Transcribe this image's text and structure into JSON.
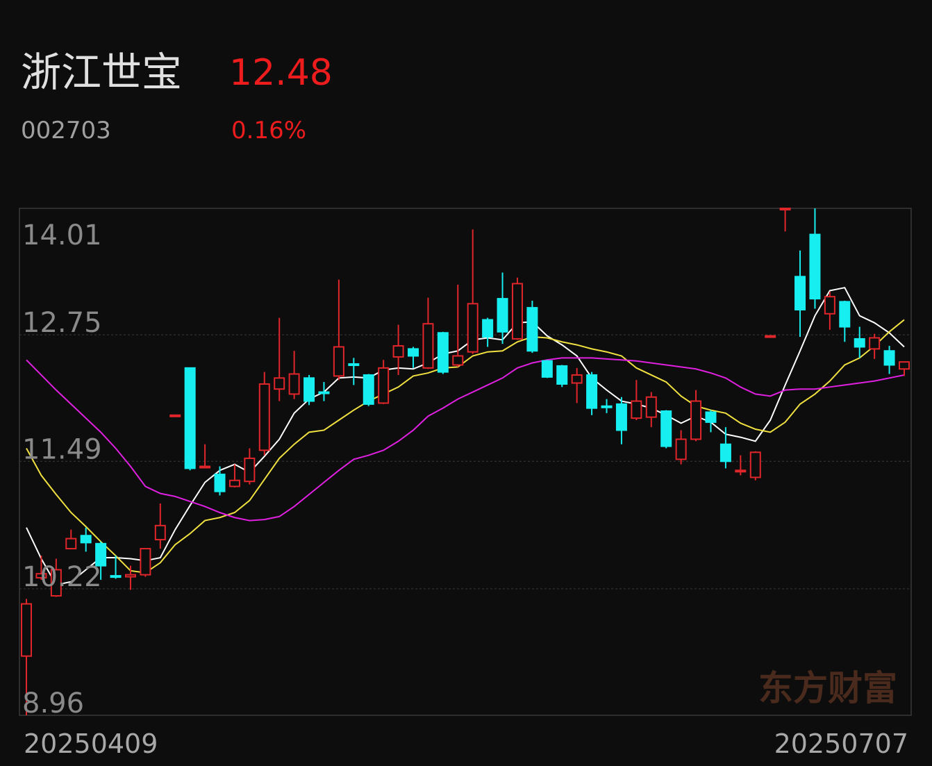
{
  "header": {
    "name": "浙江世宝",
    "price": "12.48",
    "code": "002703",
    "change": "0.16%"
  },
  "chart_data": {
    "type": "candlestick",
    "ylim": [
      8.96,
      14.01
    ],
    "yticks": [
      14.01,
      12.75,
      11.49,
      10.22,
      8.96
    ],
    "grid": true,
    "date_labels": [
      "20250409",
      "20250707"
    ],
    "up_color": "#e0262a",
    "down_color": "#17eef0",
    "open": [
      9.55,
      10.33,
      10.15,
      10.62,
      10.75,
      10.67,
      10.35,
      10.34,
      10.36,
      10.71,
      11.95,
      12.42,
      11.43,
      11.36,
      11.24,
      11.29,
      11.6,
      12.21,
      12.16,
      12.32,
      12.18,
      12.34,
      12.46,
      12.35,
      12.07,
      12.53,
      12.61,
      12.42,
      12.77,
      12.45,
      12.58,
      12.9,
      13.11,
      12.71,
      13.02,
      12.49,
      12.44,
      12.27,
      12.35,
      12.04,
      12.06,
      11.92,
      11.93,
      11.99,
      11.51,
      11.71,
      11.98,
      11.66,
      11.39,
      11.33,
      12.74,
      14.01,
      13.33,
      13.75,
      12.96,
      13.08,
      12.71,
      12.61,
      12.59,
      12.41
    ],
    "high": [
      10.12,
      10.55,
      10.52,
      10.81,
      10.83,
      10.69,
      10.55,
      10.45,
      10.62,
      11.07,
      11.95,
      12.42,
      11.66,
      11.44,
      11.46,
      11.62,
      12.38,
      12.92,
      12.59,
      12.35,
      12.28,
      13.3,
      12.52,
      12.36,
      12.5,
      12.85,
      12.63,
      13.12,
      12.78,
      13.25,
      13.8,
      12.92,
      13.37,
      13.32,
      13.09,
      12.5,
      12.45,
      12.42,
      12.38,
      12.11,
      12.13,
      12.3,
      12.18,
      12.0,
      11.8,
      12.2,
      12.0,
      11.83,
      11.55,
      11.59,
      12.74,
      14.01,
      13.59,
      14.01,
      13.18,
      13.09,
      12.83,
      12.76,
      12.64,
      12.48
    ],
    "low": [
      8.96,
      10.31,
      10.14,
      10.62,
      10.59,
      10.31,
      10.32,
      10.21,
      10.34,
      10.62,
      11.95,
      11.4,
      11.42,
      11.15,
      11.23,
      11.26,
      11.55,
      12.09,
      12.11,
      12.05,
      12.09,
      12.3,
      12.25,
      12.04,
      12.06,
      12.35,
      12.42,
      12.41,
      12.36,
      12.43,
      12.56,
      12.63,
      12.66,
      12.7,
      12.57,
      12.32,
      12.23,
      12.07,
      11.95,
      11.97,
      11.66,
      11.9,
      11.83,
      11.62,
      11.46,
      11.69,
      11.78,
      11.42,
      11.35,
      11.3,
      12.74,
      13.78,
      12.73,
      13.01,
      12.8,
      12.68,
      12.52,
      12.51,
      12.36,
      12.34
    ],
    "close": [
      10.07,
      10.37,
      10.41,
      10.72,
      10.68,
      10.45,
      10.34,
      10.36,
      10.62,
      10.85,
      11.95,
      11.42,
      11.44,
      11.19,
      11.3,
      11.52,
      12.26,
      12.32,
      12.36,
      12.09,
      12.17,
      12.63,
      12.45,
      12.06,
      12.42,
      12.64,
      12.54,
      12.86,
      12.38,
      12.54,
      13.06,
      12.73,
      12.78,
      13.26,
      12.59,
      12.33,
      12.26,
      12.35,
      12.02,
      12.03,
      11.8,
      12.09,
      12.13,
      11.64,
      11.71,
      12.09,
      11.88,
      11.49,
      11.4,
      11.58,
      12.74,
      14.01,
      13.0,
      13.11,
      13.13,
      12.83,
      12.63,
      12.72,
      12.45,
      12.48
    ],
    "lines": [
      {
        "color": "#ffffff",
        "values": [
          10.83,
          10.52,
          10.26,
          10.29,
          10.41,
          10.53,
          10.53,
          10.52,
          10.5,
          10.53,
          10.81,
          11.05,
          11.28,
          11.4,
          11.46,
          11.38,
          11.54,
          11.71,
          11.97,
          12.11,
          12.18,
          12.32,
          12.33,
          12.32,
          12.4,
          12.42,
          12.41,
          12.47,
          12.56,
          12.59,
          12.7,
          12.72,
          12.7,
          12.87,
          12.88,
          12.74,
          12.65,
          12.54,
          12.32,
          12.2,
          12.09,
          12.06,
          12.02,
          11.95,
          11.87,
          11.94,
          11.88,
          11.76,
          11.73,
          11.69,
          11.9,
          12.25,
          12.59,
          12.94,
          13.19,
          13.22,
          12.94,
          12.87,
          12.77,
          12.63
        ]
      },
      {
        "color": "#f0e040",
        "values": [
          11.62,
          11.35,
          11.16,
          10.98,
          10.84,
          10.69,
          10.55,
          10.4,
          10.38,
          10.48,
          10.66,
          10.77,
          10.9,
          10.93,
          10.98,
          11.1,
          11.31,
          11.52,
          11.66,
          11.78,
          11.8,
          11.9,
          12.0,
          12.09,
          12.16,
          12.23,
          12.34,
          12.37,
          12.42,
          12.43,
          12.54,
          12.58,
          12.59,
          12.68,
          12.73,
          12.72,
          12.68,
          12.65,
          12.61,
          12.58,
          12.54,
          12.42,
          12.35,
          12.28,
          12.14,
          12.04,
          12.0,
          11.97,
          11.87,
          11.81,
          11.78,
          11.88,
          12.06,
          12.16,
          12.29,
          12.45,
          12.52,
          12.64,
          12.78,
          12.9
        ]
      },
      {
        "color": "#e020e0",
        "values": [
          12.5,
          12.35,
          12.2,
          12.06,
          11.92,
          11.78,
          11.62,
          11.44,
          11.24,
          11.17,
          11.14,
          11.09,
          11.04,
          10.98,
          10.93,
          10.9,
          10.91,
          10.94,
          11.04,
          11.16,
          11.28,
          11.4,
          11.51,
          11.55,
          11.6,
          11.69,
          11.8,
          11.94,
          12.02,
          12.11,
          12.18,
          12.25,
          12.32,
          12.42,
          12.47,
          12.5,
          12.52,
          12.52,
          12.52,
          12.51,
          12.5,
          12.49,
          12.47,
          12.45,
          12.43,
          12.41,
          12.37,
          12.32,
          12.23,
          12.16,
          12.14,
          12.2,
          12.21,
          12.21,
          12.23,
          12.25,
          12.27,
          12.29,
          12.32,
          12.35
        ]
      }
    ],
    "watermark": "东方财富"
  }
}
